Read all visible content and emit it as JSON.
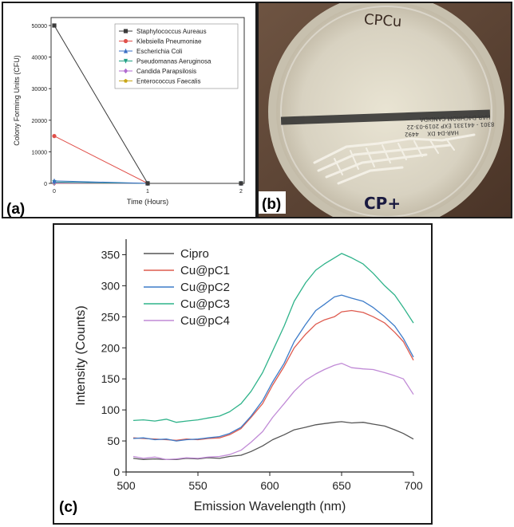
{
  "figure": {
    "panel_a_label": "(a)",
    "panel_b_label": "(b)",
    "panel_c_label": "(c)",
    "photo": {
      "lid_top_text": "CPCu",
      "lid_bottom_text": "CP+",
      "label_line1": "HAR-D4 DX",
      "label_line2": "8301 - 441331 EXP 2019-03-22",
      "label_line3": "HAR-D4CHROM CANDIDA",
      "label_num": "4492",
      "description": "Petri dish with white bacterial streaks on agar"
    }
  },
  "chart_data": [
    {
      "id": "a",
      "type": "line",
      "xlabel": "Time (Hours)",
      "ylabel": "Colony Forming Units (CFU)",
      "xlim": [
        0,
        2
      ],
      "ylim": [
        0,
        50000
      ],
      "xticks": [
        0,
        1,
        2
      ],
      "yticks": [
        0,
        10000,
        20000,
        30000,
        40000,
        50000
      ],
      "legend_position": "top-right",
      "x": [
        0,
        1,
        2
      ],
      "series": [
        {
          "name": "Staphylococcus Aureaus",
          "color": "#3a3a3a",
          "marker": "square",
          "values": [
            50000,
            0,
            0
          ]
        },
        {
          "name": "Klebsiella Pneumoniae",
          "color": "#e0504a",
          "marker": "circle",
          "values": [
            15000,
            0,
            0
          ]
        },
        {
          "name": "Escherichia Coli",
          "color": "#3a6fc4",
          "marker": "triangle",
          "values": [
            800,
            0,
            0
          ]
        },
        {
          "name": "Pseudomanas Aeruginosa",
          "color": "#22a085",
          "marker": "triangle-down",
          "values": [
            400,
            0,
            0
          ]
        },
        {
          "name": "Candida Parapsilosis",
          "color": "#b06ad0",
          "marker": "diamond",
          "values": [
            100,
            0,
            0
          ]
        },
        {
          "name": "Enterococcus Faecalis",
          "color": "#c9a616",
          "marker": "pentagon",
          "values": [
            50,
            0,
            0
          ]
        }
      ]
    },
    {
      "id": "c",
      "type": "line",
      "xlabel": "Emission Wavelength (nm)",
      "ylabel": "Intensity (Counts)",
      "xlim": [
        500,
        700
      ],
      "ylim": [
        0,
        375
      ],
      "xticks": [
        500,
        550,
        600,
        650,
        700
      ],
      "yticks": [
        0,
        50,
        100,
        150,
        200,
        250,
        300,
        350
      ],
      "legend_position": "top-left",
      "x": [
        505,
        512,
        520,
        528,
        535,
        542,
        550,
        557,
        565,
        572,
        580,
        587,
        595,
        602,
        610,
        617,
        625,
        632,
        638,
        645,
        650,
        657,
        665,
        672,
        680,
        687,
        693,
        700
      ],
      "series": [
        {
          "name": "Cipro",
          "color": "#555555",
          "values": [
            22,
            20,
            21,
            20,
            20,
            22,
            21,
            23,
            22,
            25,
            27,
            33,
            42,
            52,
            60,
            68,
            72,
            76,
            78,
            80,
            81,
            79,
            80,
            77,
            74,
            68,
            62,
            53
          ]
        },
        {
          "name": "Cu@pC1",
          "color": "#de5b4f",
          "values": [
            55,
            54,
            53,
            52,
            51,
            53,
            52,
            54,
            55,
            60,
            70,
            88,
            110,
            140,
            170,
            200,
            222,
            238,
            245,
            250,
            258,
            260,
            257,
            250,
            240,
            225,
            210,
            180
          ]
        },
        {
          "name": "Cu@pC2",
          "color": "#3d7cc9",
          "values": [
            54,
            55,
            52,
            53,
            50,
            52,
            53,
            55,
            57,
            62,
            72,
            90,
            115,
            145,
            175,
            210,
            238,
            260,
            270,
            282,
            285,
            280,
            275,
            265,
            250,
            235,
            215,
            185
          ]
        },
        {
          "name": "Cu@pC3",
          "color": "#2fb38a",
          "values": [
            83,
            84,
            82,
            85,
            80,
            82,
            84,
            87,
            90,
            97,
            110,
            130,
            160,
            195,
            235,
            275,
            305,
            325,
            335,
            345,
            352,
            345,
            335,
            320,
            300,
            285,
            265,
            240
          ]
        },
        {
          "name": "Cu@pC4",
          "color": "#c08ad6",
          "values": [
            25,
            22,
            24,
            20,
            21,
            23,
            22,
            24,
            25,
            28,
            35,
            48,
            65,
            88,
            110,
            130,
            148,
            158,
            165,
            172,
            175,
            168,
            166,
            165,
            160,
            155,
            150,
            125
          ]
        }
      ]
    }
  ]
}
